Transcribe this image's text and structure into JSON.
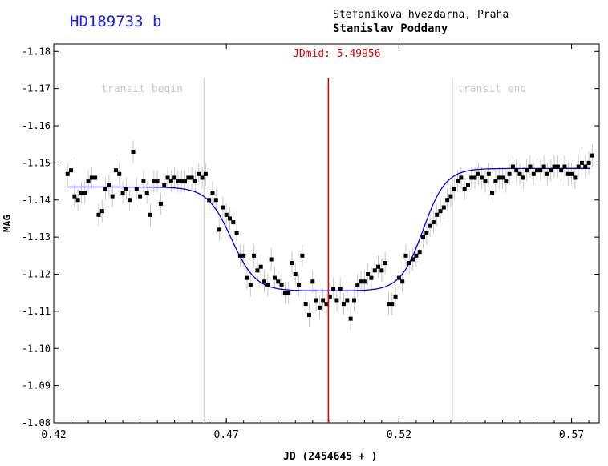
{
  "chart_data": {
    "type": "scatter",
    "title": "HD189733 b",
    "observatory": "Stefanikova hvezdarna, Praha",
    "observer": "Stanislav Poddany",
    "xlabel": "JD (2454645 + )",
    "ylabel": "MAG",
    "xlim": [
      0.42,
      0.578
    ],
    "ylim": [
      -1.08,
      -1.182
    ],
    "y_inverted": true,
    "x_ticks": [
      "0.42",
      "0.47",
      "0.52",
      "0.57"
    ],
    "y_ticks": [
      "-1.18",
      "-1.17",
      "-1.16",
      "-1.15",
      "-1.14",
      "-1.13",
      "-1.12",
      "-1.11",
      "-1.10",
      "-1.09",
      "-1.08"
    ],
    "markers": {
      "transit_begin": {
        "x": 0.4635,
        "label": "transit begin"
      },
      "transit_end": {
        "x": 0.5355,
        "label": "transit end"
      },
      "mid": {
        "x": 0.49956,
        "label": "JDmid: 5.49956"
      }
    },
    "fit": {
      "baseline": -1.1435,
      "baseline_end": -1.1485,
      "depth_level": -1.1155
    },
    "colors": {
      "points": "#000000",
      "errorbars": "#c8c8c8",
      "fit": "#0000ff",
      "mid": "#e00000",
      "limits": "#c8c8c8",
      "title": "#1a1aff"
    },
    "points": [
      {
        "x": 0.424,
        "y": -1.147
      },
      {
        "x": 0.425,
        "y": -1.148
      },
      {
        "x": 0.426,
        "y": -1.141
      },
      {
        "x": 0.427,
        "y": -1.14
      },
      {
        "x": 0.428,
        "y": -1.142
      },
      {
        "x": 0.429,
        "y": -1.142
      },
      {
        "x": 0.43,
        "y": -1.145
      },
      {
        "x": 0.431,
        "y": -1.146
      },
      {
        "x": 0.432,
        "y": -1.146
      },
      {
        "x": 0.433,
        "y": -1.136
      },
      {
        "x": 0.434,
        "y": -1.137
      },
      {
        "x": 0.435,
        "y": -1.143
      },
      {
        "x": 0.436,
        "y": -1.144
      },
      {
        "x": 0.437,
        "y": -1.141
      },
      {
        "x": 0.438,
        "y": -1.148
      },
      {
        "x": 0.439,
        "y": -1.147
      },
      {
        "x": 0.44,
        "y": -1.142
      },
      {
        "x": 0.441,
        "y": -1.143
      },
      {
        "x": 0.442,
        "y": -1.14
      },
      {
        "x": 0.443,
        "y": -1.153
      },
      {
        "x": 0.444,
        "y": -1.143
      },
      {
        "x": 0.445,
        "y": -1.141
      },
      {
        "x": 0.446,
        "y": -1.145
      },
      {
        "x": 0.447,
        "y": -1.142
      },
      {
        "x": 0.448,
        "y": -1.136
      },
      {
        "x": 0.449,
        "y": -1.145
      },
      {
        "x": 0.45,
        "y": -1.145
      },
      {
        "x": 0.451,
        "y": -1.139
      },
      {
        "x": 0.452,
        "y": -1.144
      },
      {
        "x": 0.453,
        "y": -1.146
      },
      {
        "x": 0.454,
        "y": -1.145
      },
      {
        "x": 0.455,
        "y": -1.146
      },
      {
        "x": 0.456,
        "y": -1.145
      },
      {
        "x": 0.457,
        "y": -1.145
      },
      {
        "x": 0.458,
        "y": -1.145
      },
      {
        "x": 0.459,
        "y": -1.146
      },
      {
        "x": 0.46,
        "y": -1.146
      },
      {
        "x": 0.461,
        "y": -1.145
      },
      {
        "x": 0.462,
        "y": -1.147
      },
      {
        "x": 0.463,
        "y": -1.146
      },
      {
        "x": 0.464,
        "y": -1.147
      },
      {
        "x": 0.465,
        "y": -1.14
      },
      {
        "x": 0.466,
        "y": -1.142
      },
      {
        "x": 0.467,
        "y": -1.14
      },
      {
        "x": 0.468,
        "y": -1.132
      },
      {
        "x": 0.469,
        "y": -1.138
      },
      {
        "x": 0.47,
        "y": -1.136
      },
      {
        "x": 0.471,
        "y": -1.135
      },
      {
        "x": 0.472,
        "y": -1.134
      },
      {
        "x": 0.473,
        "y": -1.131
      },
      {
        "x": 0.474,
        "y": -1.125
      },
      {
        "x": 0.475,
        "y": -1.125
      },
      {
        "x": 0.476,
        "y": -1.119
      },
      {
        "x": 0.477,
        "y": -1.117
      },
      {
        "x": 0.478,
        "y": -1.125
      },
      {
        "x": 0.479,
        "y": -1.121
      },
      {
        "x": 0.48,
        "y": -1.122
      },
      {
        "x": 0.481,
        "y": -1.118
      },
      {
        "x": 0.482,
        "y": -1.117
      },
      {
        "x": 0.483,
        "y": -1.124
      },
      {
        "x": 0.484,
        "y": -1.119
      },
      {
        "x": 0.485,
        "y": -1.118
      },
      {
        "x": 0.486,
        "y": -1.117
      },
      {
        "x": 0.487,
        "y": -1.115
      },
      {
        "x": 0.488,
        "y": -1.115
      },
      {
        "x": 0.489,
        "y": -1.123
      },
      {
        "x": 0.49,
        "y": -1.12
      },
      {
        "x": 0.491,
        "y": -1.117
      },
      {
        "x": 0.492,
        "y": -1.125
      },
      {
        "x": 0.493,
        "y": -1.112
      },
      {
        "x": 0.494,
        "y": -1.109
      },
      {
        "x": 0.495,
        "y": -1.118
      },
      {
        "x": 0.496,
        "y": -1.113
      },
      {
        "x": 0.497,
        "y": -1.111
      },
      {
        "x": 0.498,
        "y": -1.113
      },
      {
        "x": 0.499,
        "y": -1.112
      },
      {
        "x": 0.5,
        "y": -1.114
      },
      {
        "x": 0.501,
        "y": -1.116
      },
      {
        "x": 0.502,
        "y": -1.113
      },
      {
        "x": 0.503,
        "y": -1.116
      },
      {
        "x": 0.504,
        "y": -1.112
      },
      {
        "x": 0.505,
        "y": -1.113
      },
      {
        "x": 0.506,
        "y": -1.108
      },
      {
        "x": 0.507,
        "y": -1.113
      },
      {
        "x": 0.508,
        "y": -1.117
      },
      {
        "x": 0.509,
        "y": -1.118
      },
      {
        "x": 0.51,
        "y": -1.118
      },
      {
        "x": 0.511,
        "y": -1.12
      },
      {
        "x": 0.512,
        "y": -1.119
      },
      {
        "x": 0.513,
        "y": -1.121
      },
      {
        "x": 0.514,
        "y": -1.122
      },
      {
        "x": 0.515,
        "y": -1.121
      },
      {
        "x": 0.516,
        "y": -1.123
      },
      {
        "x": 0.517,
        "y": -1.112
      },
      {
        "x": 0.518,
        "y": -1.112
      },
      {
        "x": 0.519,
        "y": -1.114
      },
      {
        "x": 0.52,
        "y": -1.119
      },
      {
        "x": 0.521,
        "y": -1.118
      },
      {
        "x": 0.522,
        "y": -1.125
      },
      {
        "x": 0.523,
        "y": -1.123
      },
      {
        "x": 0.524,
        "y": -1.124
      },
      {
        "x": 0.525,
        "y": -1.125
      },
      {
        "x": 0.526,
        "y": -1.126
      },
      {
        "x": 0.527,
        "y": -1.13
      },
      {
        "x": 0.528,
        "y": -1.131
      },
      {
        "x": 0.529,
        "y": -1.133
      },
      {
        "x": 0.53,
        "y": -1.134
      },
      {
        "x": 0.531,
        "y": -1.136
      },
      {
        "x": 0.532,
        "y": -1.137
      },
      {
        "x": 0.533,
        "y": -1.138
      },
      {
        "x": 0.534,
        "y": -1.14
      },
      {
        "x": 0.535,
        "y": -1.141
      },
      {
        "x": 0.536,
        "y": -1.143
      },
      {
        "x": 0.537,
        "y": -1.145
      },
      {
        "x": 0.538,
        "y": -1.146
      },
      {
        "x": 0.539,
        "y": -1.143
      },
      {
        "x": 0.54,
        "y": -1.144
      },
      {
        "x": 0.541,
        "y": -1.146
      },
      {
        "x": 0.542,
        "y": -1.146
      },
      {
        "x": 0.543,
        "y": -1.147
      },
      {
        "x": 0.544,
        "y": -1.146
      },
      {
        "x": 0.545,
        "y": -1.145
      },
      {
        "x": 0.546,
        "y": -1.147
      },
      {
        "x": 0.547,
        "y": -1.142
      },
      {
        "x": 0.548,
        "y": -1.145
      },
      {
        "x": 0.549,
        "y": -1.146
      },
      {
        "x": 0.55,
        "y": -1.146
      },
      {
        "x": 0.551,
        "y": -1.145
      },
      {
        "x": 0.552,
        "y": -1.147
      },
      {
        "x": 0.553,
        "y": -1.149
      },
      {
        "x": 0.554,
        "y": -1.148
      },
      {
        "x": 0.555,
        "y": -1.147
      },
      {
        "x": 0.556,
        "y": -1.146
      },
      {
        "x": 0.557,
        "y": -1.148
      },
      {
        "x": 0.558,
        "y": -1.149
      },
      {
        "x": 0.559,
        "y": -1.147
      },
      {
        "x": 0.56,
        "y": -1.148
      },
      {
        "x": 0.561,
        "y": -1.148
      },
      {
        "x": 0.562,
        "y": -1.149
      },
      {
        "x": 0.563,
        "y": -1.147
      },
      {
        "x": 0.564,
        "y": -1.148
      },
      {
        "x": 0.565,
        "y": -1.149
      },
      {
        "x": 0.566,
        "y": -1.149
      },
      {
        "x": 0.567,
        "y": -1.148
      },
      {
        "x": 0.568,
        "y": -1.149
      },
      {
        "x": 0.569,
        "y": -1.147
      },
      {
        "x": 0.57,
        "y": -1.147
      },
      {
        "x": 0.571,
        "y": -1.146
      },
      {
        "x": 0.572,
        "y": -1.149
      },
      {
        "x": 0.573,
        "y": -1.15
      },
      {
        "x": 0.574,
        "y": -1.149
      },
      {
        "x": 0.575,
        "y": -1.15
      },
      {
        "x": 0.576,
        "y": -1.152
      }
    ]
  }
}
